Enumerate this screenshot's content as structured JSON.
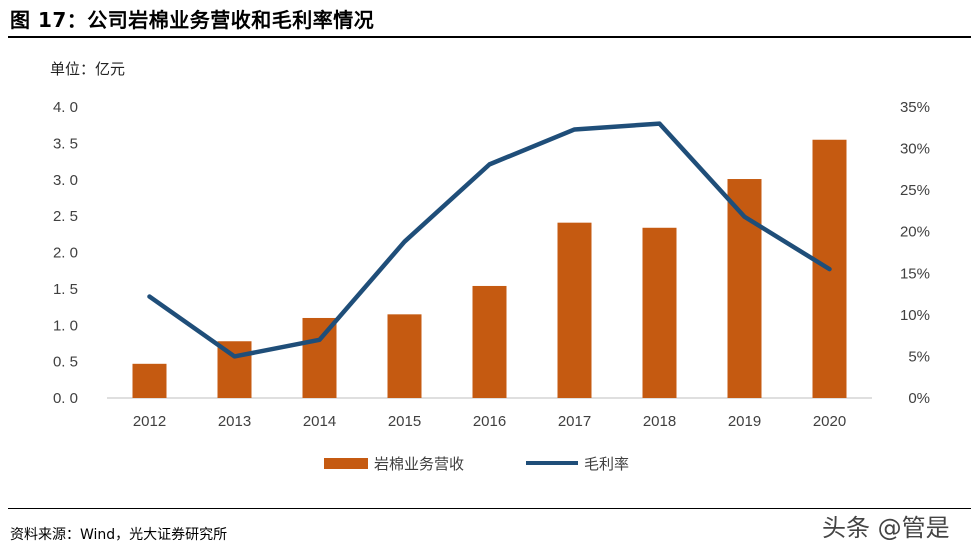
{
  "title": "图 17：公司岩棉业务营收和毛利率情况",
  "unit_label": "单位：亿元",
  "source": "资料来源：Wind，光大证券研究所",
  "watermark": "头条 @管是",
  "colors": {
    "bar": "#C55A11",
    "line": "#1F4E79",
    "axis": "#BFBFBF"
  },
  "chart_data": {
    "type": "bar",
    "categories": [
      "2012",
      "2013",
      "2014",
      "2015",
      "2016",
      "2017",
      "2018",
      "2019",
      "2020"
    ],
    "series": [
      {
        "name": "岩棉业务营收",
        "type": "bar",
        "axis": "left",
        "values": [
          0.47,
          0.78,
          1.1,
          1.15,
          1.54,
          2.41,
          2.34,
          3.01,
          3.55
        ]
      },
      {
        "name": "毛利率",
        "type": "line",
        "axis": "right",
        "values": [
          0.122,
          0.05,
          0.07,
          0.188,
          0.281,
          0.323,
          0.33,
          0.218,
          0.155
        ]
      }
    ],
    "ylim": [
      0,
      4.0
    ],
    "yticks": [
      "0. 0",
      "0. 5",
      "1. 0",
      "1. 5",
      "2. 0",
      "2. 5",
      "3. 0",
      "3. 5",
      "4. 0"
    ],
    "y2lim": [
      0,
      0.35
    ],
    "y2ticks": [
      "0%",
      "5%",
      "10%",
      "15%",
      "20%",
      "25%",
      "30%",
      "35%"
    ],
    "legend": "bottom-center"
  }
}
